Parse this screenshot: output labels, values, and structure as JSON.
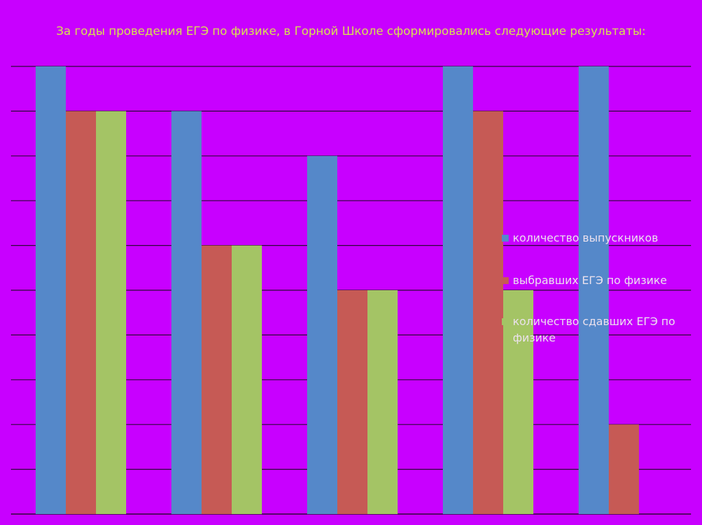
{
  "title": "За годы проведения ЕГЭ по физике, в Горной Школе сформировались следующие результаты:",
  "colors": {
    "background": "#C800FF",
    "title": "#D8E052",
    "grid": "#2b0836",
    "legend_text": "#ECE2EE"
  },
  "chart_data": {
    "type": "bar",
    "title": "",
    "xlabel": "",
    "ylabel": "",
    "categories": [
      "",
      "",
      "",
      "",
      ""
    ],
    "ylim": [
      0,
      10
    ],
    "grid": true,
    "legend_position": "right",
    "series": [
      {
        "name": "количество выпускников",
        "color": "#5588C9",
        "values": [
          10,
          9,
          8,
          10,
          10
        ]
      },
      {
        "name": "выбравших ЕГЭ по физике",
        "color": "#C65A55",
        "values": [
          9,
          6,
          5,
          9,
          2
        ]
      },
      {
        "name": "количество сдавших ЕГЭ по физике",
        "color": "#A4C465",
        "values": [
          9,
          6,
          5,
          5,
          0
        ]
      }
    ]
  }
}
